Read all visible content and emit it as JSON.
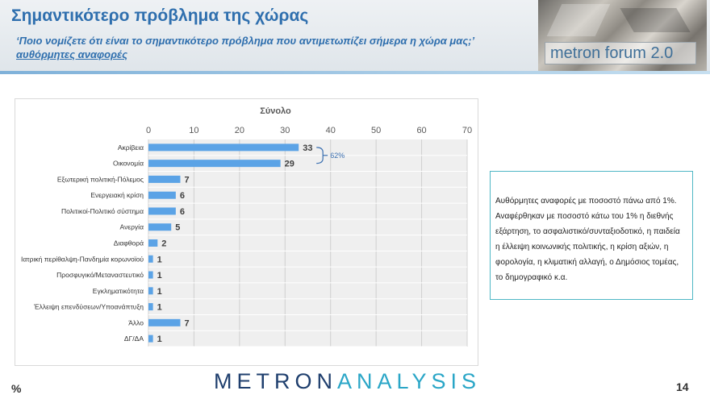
{
  "header": {
    "title": "Σημαντικότερο πρόβλημα της χώρας",
    "subtitle": "‘Ποιο νομίζετε ότι είναι το σημαντικότερο πρόβλημα που αντιμετωπίζει σήμερα η χώρα μας;’",
    "subtitle2": "αυθόρμητες αναφορές",
    "brand": "metron forum 2.0"
  },
  "chart_data": {
    "type": "bar",
    "orientation": "horizontal",
    "title": "Σύνολο",
    "categories": [
      "Ακρίβεια",
      "Οικονομία",
      "Εξωτερική πολιτική-Πόλεμος",
      "Ενεργειακή κρίση",
      "Πολιτικοί-Πολιτικό σύστημα",
      "Ανεργία",
      "Διαφθορά",
      "Ιατρική περίθαλψη-Πανδημία κορωνοϊού",
      "Προσφυγικό/Μεταναστευτικό",
      "Εγκληματικότητα",
      "Έλλειψη επενδύσεων/Υποανάπτυξη",
      "Άλλο",
      "ΔΓ/ΔΑ"
    ],
    "values": [
      33,
      29,
      7,
      6,
      6,
      5,
      2,
      1,
      1,
      1,
      1,
      7,
      1
    ],
    "xlim": [
      0,
      70
    ],
    "xticks": [
      0,
      10,
      20,
      30,
      40,
      50,
      60,
      70
    ],
    "tick_labels": [
      "0",
      "10",
      "20",
      "30",
      "40",
      "50",
      "60",
      "70"
    ],
    "annotation": "62%",
    "axis_position": "top",
    "grid": true,
    "bar_color": "#5ba3e6"
  },
  "note": {
    "text": "Αυθόρμητες αναφορές με ποσοστό πάνω από 1%. Αναφέρθηκαν με ποσοστό κάτω του 1% η διεθνής εξάρτηση, το ασφαλιστικό/συνταξιοδοτικό, η παιδεία η έλλειψη κοινωνικής πολιτικής, η κρίση αξιών, η φορολογία, η κλιματική αλλαγή, ο Δημόσιος τομέας, το δημογραφικό κ.α."
  },
  "footer": {
    "logo_part1": "METRON",
    "logo_part2": "ANALYSIS",
    "percent_sign": "%",
    "page_number": "14"
  }
}
